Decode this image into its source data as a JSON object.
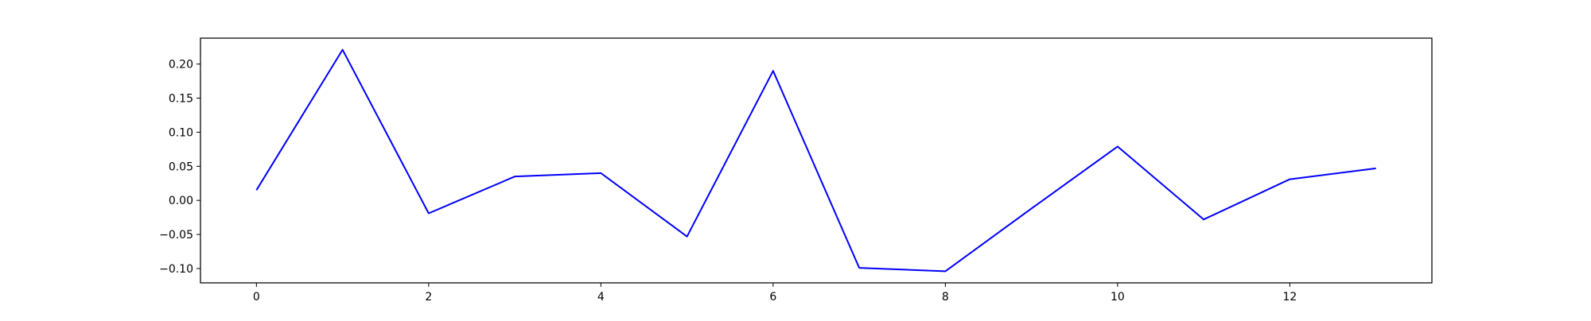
{
  "chart_data": {
    "type": "line",
    "title": "",
    "xlabel": "",
    "ylabel": "",
    "x": [
      0,
      1,
      2,
      3,
      4,
      5,
      6,
      7,
      8,
      9,
      10,
      11,
      12,
      13
    ],
    "series": [
      {
        "color": "#0000ff",
        "values": [
          0.015,
          0.221,
          -0.019,
          0.035,
          0.04,
          -0.053,
          0.19,
          -0.099,
          -0.104,
          -0.012,
          0.079,
          -0.028,
          0.031,
          0.047
        ]
      }
    ],
    "xlim": [
      -0.65,
      13.65
    ],
    "ylim": [
      -0.121,
      0.238
    ],
    "x_ticks": [
      0,
      2,
      4,
      6,
      8,
      10,
      12
    ],
    "x_tick_labels": [
      "0",
      "2",
      "4",
      "6",
      "8",
      "10",
      "12"
    ],
    "y_ticks": [
      -0.1,
      -0.05,
      0.0,
      0.05,
      0.1,
      0.15,
      0.2
    ],
    "y_tick_labels": [
      "−0.10",
      "−0.05",
      "0.00",
      "0.05",
      "0.10",
      "0.15",
      "0.20"
    ],
    "grid": false,
    "legend": "none"
  }
}
